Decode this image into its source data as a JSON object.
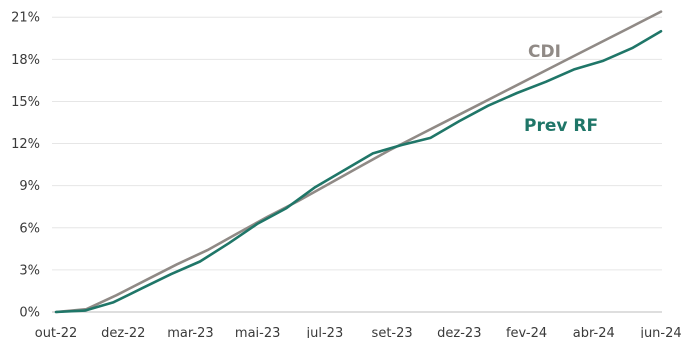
{
  "chart_data": {
    "type": "line",
    "title": "",
    "xlabel": "",
    "ylabel": "",
    "x_tick_labels": [
      "out-22",
      "dez-22",
      "mar-23",
      "mai-23",
      "jul-23",
      "set-23",
      "dez-23",
      "fev-24",
      "abr-24",
      "jun-24"
    ],
    "y_tick_labels": [
      "0%",
      "3%",
      "6%",
      "9%",
      "12%",
      "15%",
      "18%",
      "21%"
    ],
    "y_ticks": [
      0,
      3,
      6,
      9,
      12,
      15,
      18,
      21
    ],
    "ylim": [
      0,
      21.8
    ],
    "grid": true,
    "series": [
      {
        "name": "CDI",
        "color": "#908a86",
        "values": [
          0.0,
          0.2,
          1.2,
          2.3,
          3.4,
          4.4,
          5.6,
          6.8,
          7.9,
          9.1,
          10.3,
          11.5,
          12.6,
          13.7,
          14.8,
          15.9,
          17.0,
          18.1,
          19.2,
          20.3,
          21.4
        ]
      },
      {
        "name": "Prev RF",
        "color": "#1f7668",
        "values": [
          0.0,
          0.1,
          0.7,
          1.7,
          2.7,
          3.6,
          4.9,
          6.3,
          7.4,
          8.9,
          10.1,
          11.3,
          11.9,
          12.4,
          13.6,
          14.7,
          15.6,
          16.4,
          17.3,
          17.9,
          18.8,
          20.0
        ]
      }
    ]
  }
}
